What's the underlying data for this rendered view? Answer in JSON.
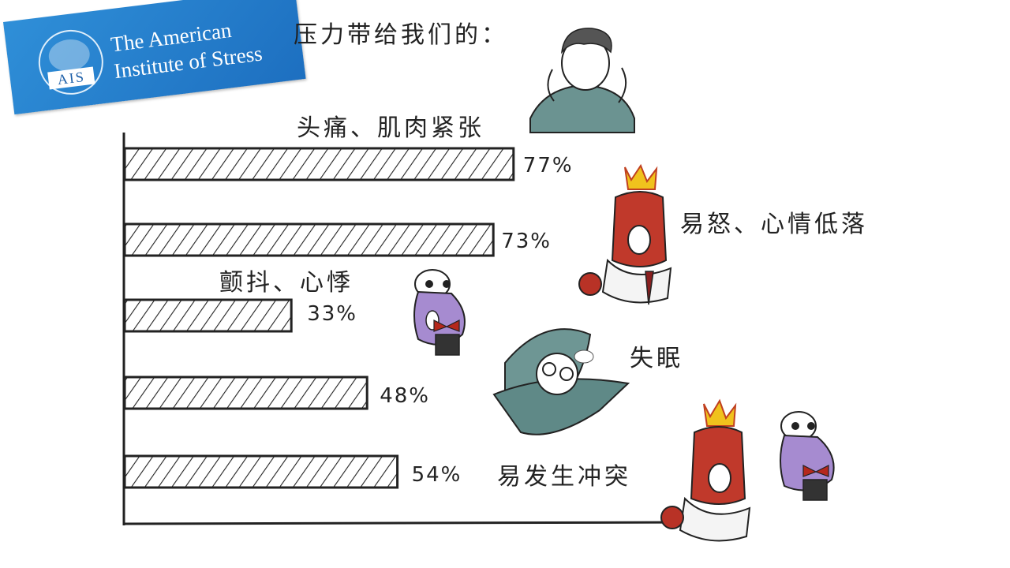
{
  "logo": {
    "org_line1": "The American",
    "org_line2": "Institute of Stress",
    "abbr": "AIS",
    "color": "#1d6fc0"
  },
  "chart_data": {
    "type": "bar",
    "orientation": "horizontal",
    "title": "压力带给我们的：",
    "xlim": [
      0,
      100
    ],
    "categories": [
      "头痛、肌肉紧张",
      "易怒、心情低落",
      "颤抖、心悸",
      "失眠",
      "易发生冲突"
    ],
    "values": [
      77,
      73,
      33,
      48,
      54
    ],
    "data_labels": [
      "77%",
      "73%",
      "33%",
      "48%",
      "54%"
    ],
    "bar_fill": "hatched",
    "grid": false,
    "legend": "none"
  },
  "illustrations": [
    "headache-person-icon",
    "angry-character-icon",
    "fear-character-icon",
    "insomnia-person-icon",
    "conflict-characters-icon"
  ]
}
